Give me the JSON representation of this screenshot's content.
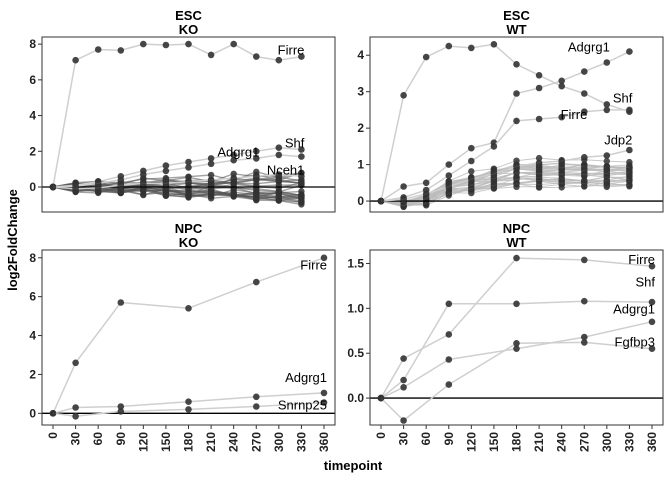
{
  "chart_data": {
    "type": "line",
    "xlabel": "timepoint",
    "ylabel": "log2FoldChange",
    "x_ticks": [
      "0",
      "30",
      "60",
      "90",
      "120",
      "150",
      "180",
      "210",
      "240",
      "270",
      "300",
      "330",
      "360"
    ],
    "x": [
      0,
      30,
      60,
      90,
      120,
      150,
      180,
      210,
      240,
      270,
      300,
      330,
      360
    ],
    "panels": [
      {
        "title": "ESC",
        "subtitle": "KO",
        "ylim": [
          -1.4,
          8.4
        ],
        "yticks": [
          0,
          2,
          4,
          6,
          8
        ],
        "series": [
          {
            "name": "Firre",
            "points": [
              [
                0,
                0
              ],
              [
                30,
                7.1
              ],
              [
                60,
                7.7
              ],
              [
                90,
                7.65
              ],
              [
                120,
                8.0
              ],
              [
                150,
                7.95
              ],
              [
                180,
                8.0
              ],
              [
                210,
                7.4
              ],
              [
                240,
                8.0
              ],
              [
                270,
                7.3
              ],
              [
                300,
                7.1
              ],
              [
                330,
                7.3
              ]
            ]
          },
          {
            "name": "Shf",
            "points": [
              [
                0,
                0
              ],
              [
                30,
                0.1
              ],
              [
                60,
                0.3
              ],
              [
                90,
                0.6
              ],
              [
                120,
                0.9
              ],
              [
                150,
                1.2
              ],
              [
                180,
                1.4
              ],
              [
                210,
                1.6
              ],
              [
                240,
                1.8
              ],
              [
                270,
                2.0
              ],
              [
                300,
                2.2
              ],
              [
                330,
                2.1
              ]
            ]
          },
          {
            "name": "Adgrg1",
            "points": [
              [
                0,
                0
              ],
              [
                30,
                0.05
              ],
              [
                60,
                0.2
              ],
              [
                90,
                0.4
              ],
              [
                120,
                0.7
              ],
              [
                150,
                0.9
              ],
              [
                180,
                1.1
              ],
              [
                210,
                1.3
              ],
              [
                240,
                1.5
              ],
              [
                270,
                1.6
              ],
              [
                300,
                1.8
              ],
              [
                330,
                1.7
              ]
            ]
          },
          {
            "name": "Nceh1",
            "points": [
              [
                0,
                0
              ],
              [
                30,
                -0.1
              ],
              [
                60,
                -0.05
              ],
              [
                90,
                0.1
              ],
              [
                120,
                0.2
              ],
              [
                150,
                0.2
              ],
              [
                180,
                0.3
              ],
              [
                210,
                0.4
              ],
              [
                240,
                0.5
              ],
              [
                270,
                0.6
              ],
              [
                300,
                0.7
              ],
              [
                330,
                0.6
              ]
            ]
          }
        ],
        "labels": [
          {
            "text": "Firre",
            "x": 330,
            "y": 7.3
          },
          {
            "text": "Shf",
            "x": 330,
            "y": 2.1
          },
          {
            "text": "Adgrg1",
            "x": 270,
            "y": 1.6
          },
          {
            "text": "Nceh1",
            "x": 330,
            "y": 0.6
          }
        ]
      },
      {
        "title": "ESC",
        "subtitle": "WT",
        "ylim": [
          -0.3,
          4.5
        ],
        "yticks": [
          0,
          1,
          2,
          3,
          4
        ],
        "series": [
          {
            "name": "Adgrg1",
            "points": [
              [
                0,
                0
              ],
              [
                30,
                2.9
              ],
              [
                60,
                3.95
              ],
              [
                90,
                4.25
              ],
              [
                120,
                4.2
              ],
              [
                150,
                4.3
              ],
              [
                180,
                3.75
              ],
              [
                210,
                3.45
              ],
              [
                240,
                3.15
              ],
              [
                270,
                2.95
              ],
              [
                300,
                2.65
              ],
              [
                330,
                2.45
              ]
            ]
          },
          {
            "name": "Shf",
            "points": [
              [
                0,
                0
              ],
              [
                30,
                0.4
              ],
              [
                60,
                0.5
              ],
              [
                90,
                1.0
              ],
              [
                120,
                1.45
              ],
              [
                150,
                1.6
              ],
              [
                180,
                2.95
              ],
              [
                210,
                3.1
              ],
              [
                240,
                3.3
              ],
              [
                270,
                3.55
              ],
              [
                300,
                3.8
              ],
              [
                330,
                4.1
              ]
            ]
          },
          {
            "name": "Firre",
            "points": [
              [
                0,
                0
              ],
              [
                30,
                0.1
              ],
              [
                60,
                0.3
              ],
              [
                90,
                0.7
              ],
              [
                120,
                1.1
              ],
              [
                150,
                1.5
              ],
              [
                180,
                2.2
              ],
              [
                210,
                2.25
              ],
              [
                240,
                2.3
              ],
              [
                270,
                2.45
              ],
              [
                300,
                2.5
              ],
              [
                330,
                2.5
              ]
            ]
          },
          {
            "name": "Jdp2",
            "points": [
              [
                0,
                0
              ],
              [
                30,
                0.05
              ],
              [
                60,
                0.2
              ],
              [
                90,
                0.4
              ],
              [
                120,
                0.6
              ],
              [
                150,
                0.75
              ],
              [
                180,
                0.95
              ],
              [
                210,
                1.05
              ],
              [
                240,
                1.1
              ],
              [
                270,
                1.2
              ],
              [
                300,
                1.25
              ],
              [
                330,
                1.4
              ]
            ]
          }
        ],
        "labels": [
          {
            "text": "Adgrg1",
            "x": 300,
            "y": 4.05
          },
          {
            "text": "Shf",
            "x": 330,
            "y": 2.65
          },
          {
            "text": "Firre",
            "x": 270,
            "y": 2.2
          },
          {
            "text": "Jdp2",
            "x": 330,
            "y": 1.5
          }
        ]
      },
      {
        "title": "NPC",
        "subtitle": "KO",
        "ylim": [
          -0.6,
          8.4
        ],
        "yticks": [
          0,
          2,
          4,
          6,
          8
        ],
        "series": [
          {
            "name": "Firre",
            "points": [
              [
                0,
                0
              ],
              [
                30,
                2.6
              ],
              [
                90,
                5.7
              ],
              [
                180,
                5.4
              ],
              [
                270,
                6.75
              ],
              [
                360,
                8.0
              ]
            ]
          },
          {
            "name": "Adgrg1",
            "points": [
              [
                0,
                0
              ],
              [
                30,
                0.3
              ],
              [
                90,
                0.35
              ],
              [
                180,
                0.6
              ],
              [
                270,
                0.85
              ],
              [
                360,
                1.05
              ]
            ]
          },
          {
            "name": "Snrnp25",
            "points": [
              [
                0,
                0
              ],
              [
                30,
                -0.15
              ],
              [
                90,
                0.1
              ],
              [
                180,
                0.2
              ],
              [
                270,
                0.35
              ],
              [
                360,
                0.55
              ]
            ]
          }
        ],
        "labels": [
          {
            "text": "Firre",
            "x": 360,
            "y": 7.3
          },
          {
            "text": "Adgrg1",
            "x": 360,
            "y": 1.5
          },
          {
            "text": "Snrnp25",
            "x": 360,
            "y": 0.1
          }
        ]
      },
      {
        "title": "NPC",
        "subtitle": "WT",
        "ylim": [
          -0.3,
          1.65
        ],
        "yticks": [
          0.0,
          0.5,
          1.0,
          1.5
        ],
        "series": [
          {
            "name": "Firre",
            "points": [
              [
                0,
                0
              ],
              [
                30,
                0.44
              ],
              [
                90,
                0.71
              ],
              [
                180,
                1.56
              ],
              [
                270,
                1.54
              ],
              [
                360,
                1.47
              ]
            ]
          },
          {
            "name": "Shf",
            "points": [
              [
                0,
                0
              ],
              [
                30,
                0.2
              ],
              [
                90,
                1.05
              ],
              [
                180,
                1.05
              ],
              [
                270,
                1.08
              ],
              [
                360,
                1.07
              ]
            ]
          },
          {
            "name": "Adgrg1",
            "points": [
              [
                0,
                0
              ],
              [
                30,
                0.12
              ],
              [
                90,
                0.43
              ],
              [
                180,
                0.55
              ],
              [
                270,
                0.68
              ],
              [
                360,
                0.85
              ]
            ]
          },
          {
            "name": "Fgfbp3",
            "points": [
              [
                0,
                0
              ],
              [
                30,
                -0.25
              ],
              [
                90,
                0.15
              ],
              [
                180,
                0.61
              ],
              [
                270,
                0.62
              ],
              [
                360,
                0.55
              ]
            ]
          }
        ],
        "labels": [
          {
            "text": "Firre",
            "x": 360,
            "y": 1.47
          },
          {
            "text": "Shf",
            "x": 360,
            "y": 1.22
          },
          {
            "text": "Adgrg1",
            "x": 360,
            "y": 0.92
          },
          {
            "text": "Fgfbp3",
            "x": 360,
            "y": 0.55
          }
        ]
      }
    ]
  },
  "colors": {
    "line": "#cfcfcf",
    "point": "#333333",
    "zero_line": "#000000",
    "panel_border": "#333333",
    "background": "#ffffff"
  }
}
